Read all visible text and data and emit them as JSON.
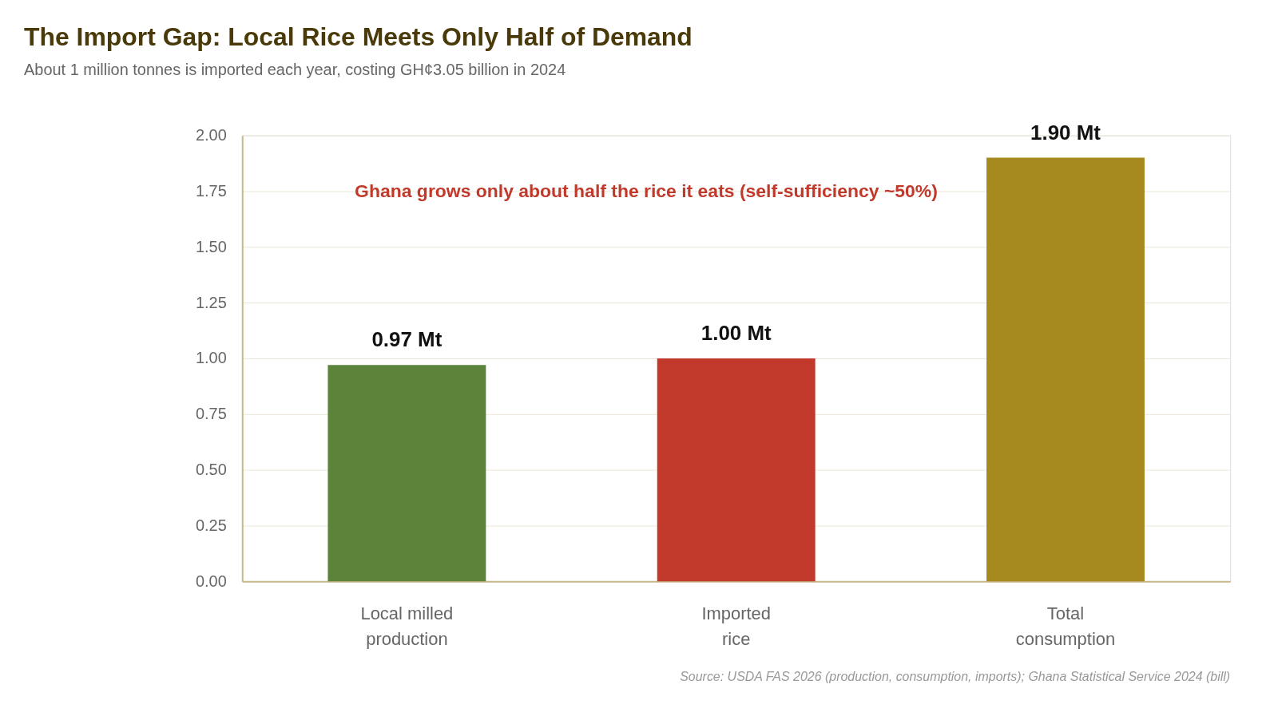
{
  "chart_data": {
    "type": "bar",
    "title": "The Import Gap: Local Rice Meets Only Half of Demand",
    "subtitle": "About 1 million tonnes is imported each year, costing GH¢3.05 billion in 2024",
    "categories": [
      "Local milled production",
      "Imported rice",
      "Total consumption"
    ],
    "values": [
      0.97,
      1.0,
      1.9
    ],
    "colors": [
      "#5b833a",
      "#c0392b",
      "#a68a1f"
    ],
    "value_labels": [
      "0.97 Mt",
      "1.00 Mt",
      "1.90 Mt"
    ],
    "ylim": [
      0,
      2
    ],
    "yticks": [
      {
        "value": 0,
        "label": "0.00"
      },
      {
        "value": 0.25,
        "label": "0.25"
      },
      {
        "value": 0.5,
        "label": "0.50"
      },
      {
        "value": 0.75,
        "label": "0.75"
      },
      {
        "value": 1,
        "label": "1.00"
      },
      {
        "value": 1.25,
        "label": "1.25"
      },
      {
        "value": 1.5,
        "label": "1.50"
      },
      {
        "value": 1.75,
        "label": "1.75"
      },
      {
        "value": 2,
        "label": "2.00"
      }
    ],
    "grid": "y",
    "annotations": [
      "Ghana grows only about half the rice it eats (self-sufficiency ~50%)",
      "Source: USDA FAS 2026 (production, consumption, imports); Ghana Statistical Service 2024 (bill)"
    ]
  }
}
